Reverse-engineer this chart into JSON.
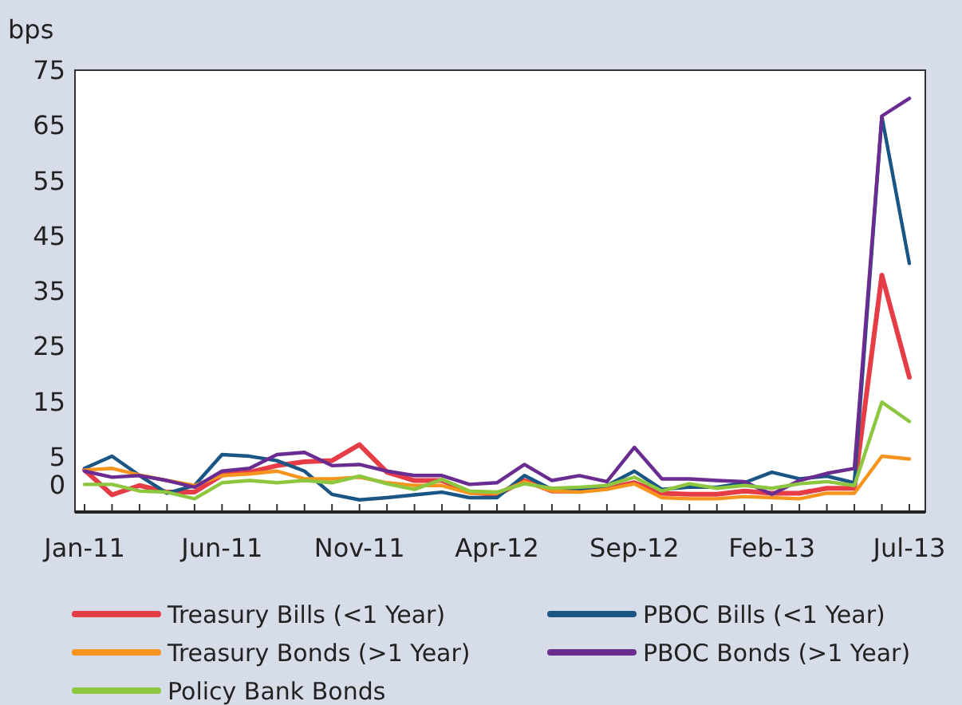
{
  "chart_data": {
    "type": "line",
    "ylabel": "bps",
    "categories": [
      "Jan-11",
      null,
      null,
      null,
      null,
      "Jun-11",
      null,
      null,
      null,
      null,
      "Nov-11",
      null,
      null,
      null,
      null,
      "Apr-12",
      null,
      null,
      null,
      null,
      "Sep-12",
      null,
      null,
      null,
      null,
      "Feb-13",
      null,
      null,
      null,
      null,
      "Jul-13"
    ],
    "ylim": [
      -5,
      75
    ],
    "yticks": [
      0,
      5,
      15,
      25,
      35,
      45,
      55,
      65,
      75
    ],
    "grid": false,
    "legend": "bottom",
    "marker": "none",
    "line_style": "solid",
    "series": [
      {
        "name": "Treasury Bills (<1 Year)",
        "color": "#e63c46",
        "values": [
          2.6,
          -1.9,
          -0.2,
          -1.4,
          -1.4,
          1.7,
          2.2,
          3.4,
          4.1,
          4.3,
          7.2,
          2.2,
          0.7,
          0.7,
          -1.4,
          -1.9,
          0.7,
          -1.2,
          -1.2,
          -0.7,
          0.3,
          -1.6,
          -1.8,
          -1.8,
          -1.2,
          -1.6,
          -1.6,
          -0.7,
          -0.7,
          37.9,
          19.4
        ]
      },
      {
        "name": "PBOC Bills (<1 Year)",
        "color": "#1a5584",
        "values": [
          2.9,
          5.1,
          1.6,
          -1.6,
          -0.2,
          5.4,
          5.1,
          4.3,
          2.4,
          -1.8,
          -2.8,
          -2.4,
          -1.9,
          -1.4,
          -2.4,
          -2.4,
          1.6,
          -0.9,
          -0.9,
          -0.2,
          2.4,
          -0.9,
          -0.5,
          -0.5,
          0.3,
          2.2,
          1,
          1.5,
          0.3,
          66.6,
          40
        ]
      },
      {
        "name": "Treasury Bonds (>1 Year)",
        "color": "#f7941d",
        "values": [
          2.6,
          2.9,
          1.7,
          0.7,
          -0.2,
          1.6,
          1.9,
          2.4,
          1,
          1,
          1.3,
          0.3,
          -0.2,
          -0.2,
          -1.6,
          -1.6,
          0.5,
          -1.2,
          -1.4,
          -0.9,
          0.1,
          -2.4,
          -2.6,
          -2.6,
          -2.2,
          -2.4,
          -2.6,
          -1.6,
          -1.6,
          5.1,
          4.6
        ]
      },
      {
        "name": "PBOC Bonds (>1 Year)",
        "color": "#6a2c91",
        "values": [
          2.4,
          1.3,
          1.6,
          0.7,
          -0.5,
          2.4,
          2.9,
          5.4,
          5.8,
          3.4,
          3.6,
          2.4,
          1.6,
          1.6,
          0,
          0.3,
          3.6,
          0.7,
          1.6,
          0.5,
          6.7,
          1,
          1,
          0.7,
          0.5,
          -1.8,
          0.7,
          2,
          2.9,
          66.7,
          69.9
        ]
      },
      {
        "name": "Policy Bank Bonds",
        "color": "#8dc63f",
        "values": [
          0,
          0,
          -1.2,
          -1.4,
          -2.6,
          0.3,
          0.7,
          0.3,
          0.7,
          0.3,
          1.5,
          0.1,
          -0.9,
          0.9,
          -1.2,
          -1.4,
          0.1,
          -0.7,
          -0.5,
          -0.2,
          1.3,
          -1.2,
          0.1,
          -0.7,
          -0.2,
          -0.7,
          0.1,
          0.5,
          -0.2,
          14.9,
          11.4
        ]
      }
    ]
  }
}
